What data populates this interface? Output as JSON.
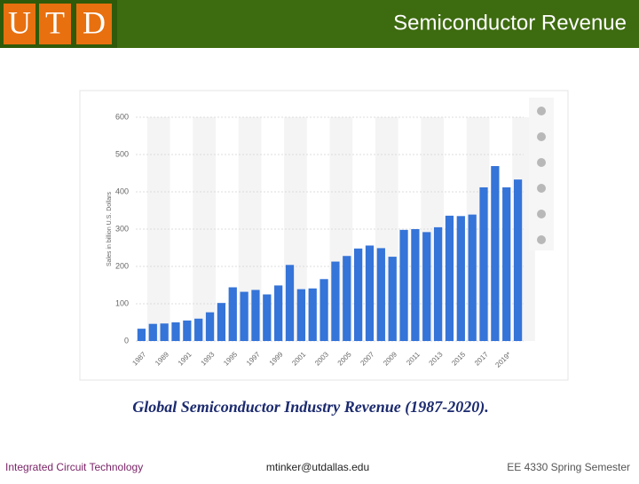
{
  "header": {
    "logo": [
      "U",
      "T",
      "D"
    ],
    "title": "Semiconductor Revenue"
  },
  "chart_data": {
    "type": "bar",
    "ylabel": "Sales in billion U.S. Dollars",
    "categories": [
      "1987",
      null,
      "1989",
      null,
      "1991",
      null,
      "1993",
      null,
      "1995",
      null,
      "1997",
      null,
      "1999",
      null,
      "2001",
      null,
      "2003",
      null,
      "2005",
      null,
      "2007",
      null,
      "2009",
      null,
      "2011",
      null,
      "2013",
      null,
      "2015",
      null,
      "2017",
      null,
      "2019*",
      null
    ],
    "values": [
      33,
      46,
      47,
      50,
      55,
      60,
      77,
      102,
      144,
      132,
      137,
      125,
      149,
      204,
      139,
      141,
      166,
      213,
      228,
      248,
      256,
      249,
      226,
      298,
      300,
      292,
      305,
      336,
      335,
      339,
      412,
      469,
      412,
      433
    ],
    "color": "#3574d8",
    "ylim": [
      0,
      600
    ],
    "yticks": [
      0,
      100,
      200,
      300,
      400,
      500,
      600
    ],
    "grid": true
  },
  "caption": "Global Semiconductor Industry Revenue (1987-2020).",
  "footer": {
    "left": "Integrated Circuit Technology",
    "center": "mtinker@utdallas.edu",
    "right": "EE 4330 Spring Semester"
  }
}
